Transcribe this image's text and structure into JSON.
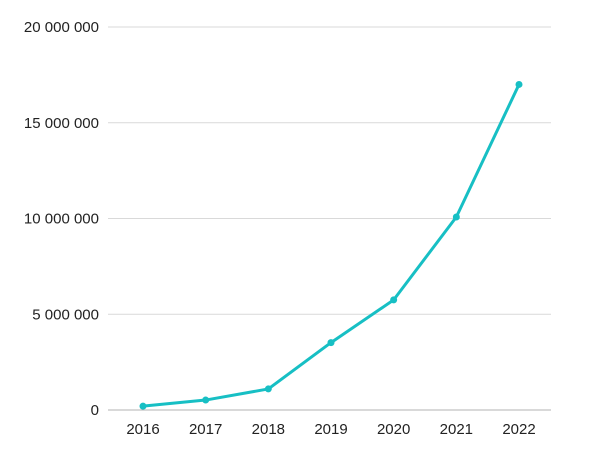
{
  "chart_data": {
    "type": "line",
    "title": "",
    "xlabel": "",
    "ylabel": "",
    "categories": [
      "2016",
      "2017",
      "2018",
      "2019",
      "2020",
      "2021",
      "2022"
    ],
    "series": [
      {
        "values": [
          200000,
          520000,
          1100000,
          3520000,
          5750000,
          10080000,
          17000000
        ]
      }
    ],
    "ylim": [
      0,
      20000000
    ],
    "yticks": [
      0,
      5000000,
      10000000,
      15000000,
      20000000
    ],
    "ytick_labels": [
      "0",
      "5 000 000",
      "10 000 000",
      "15 000 000",
      "20 000 000"
    ],
    "grid": true,
    "legend": "none",
    "colors": {
      "line": "#17bfc4",
      "grid": "#d9d9d9",
      "axis": "#b3b3b3"
    }
  }
}
